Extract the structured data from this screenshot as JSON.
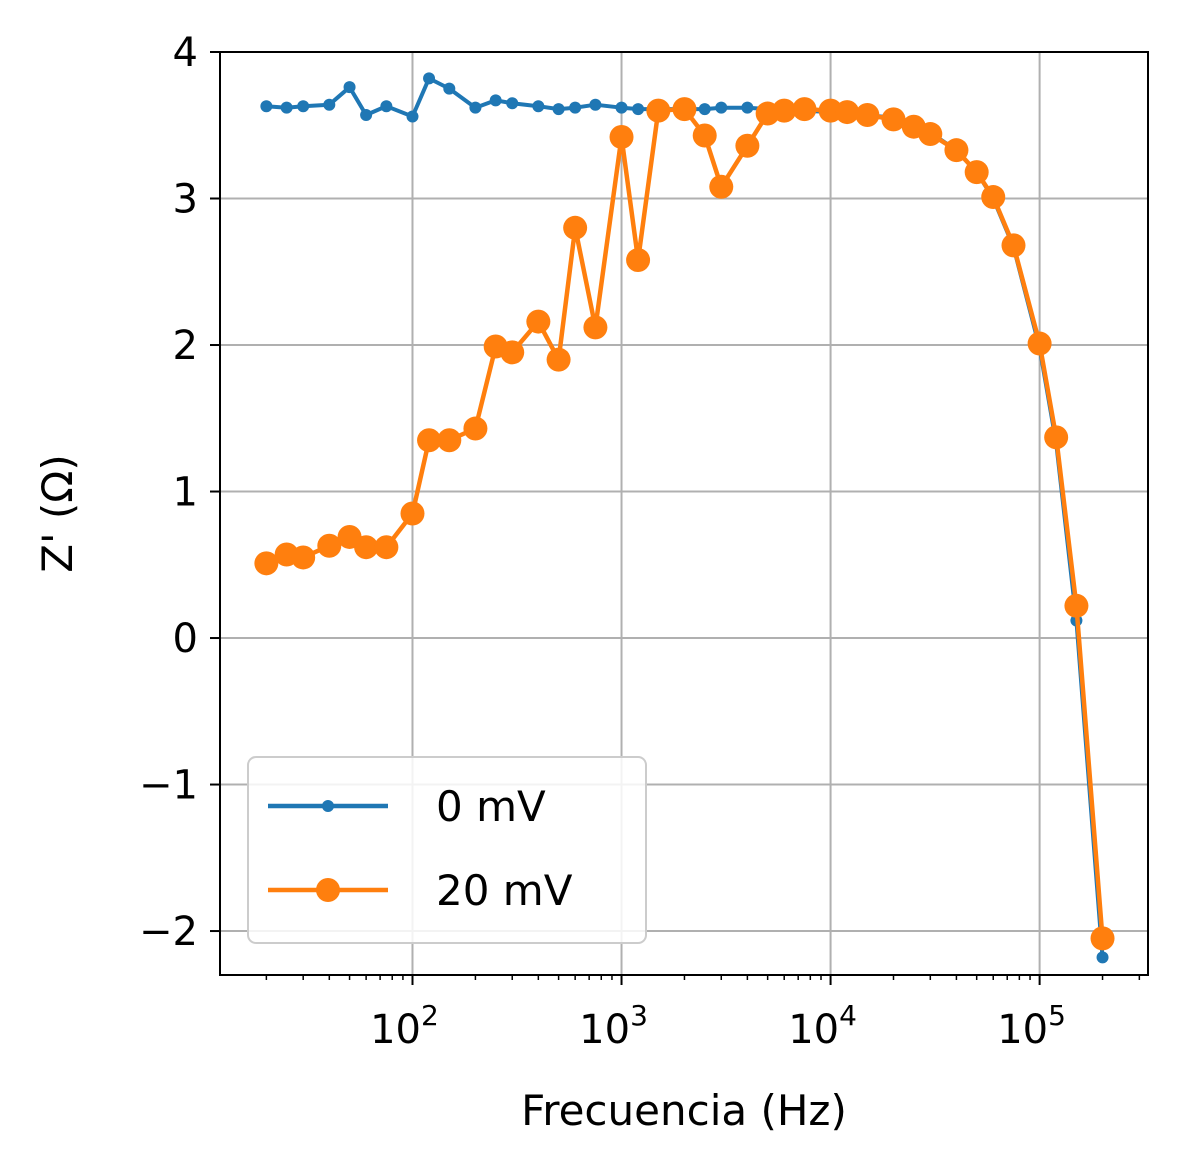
{
  "chart_data": {
    "type": "line",
    "xlabel": "Frecuencia (Hz)",
    "ylabel": "Z' (Ω)",
    "xscale": "log",
    "xlim": [
      12,
      330000
    ],
    "ylim": [
      -2.3,
      4.0
    ],
    "x_major_ticks": [
      100,
      1000,
      10000,
      100000
    ],
    "x_tick_labels": [
      "10",
      "10",
      "10",
      "10"
    ],
    "x_tick_exponents": [
      "2",
      "3",
      "4",
      "5"
    ],
    "y_ticks": [
      -2,
      -1,
      0,
      1,
      2,
      3,
      4
    ],
    "y_tick_labels": [
      "−2",
      "−1",
      "0",
      "1",
      "2",
      "3",
      "4"
    ],
    "grid": true,
    "legend_position": "lower-left",
    "series": [
      {
        "name": "0 mV",
        "color": "#1f77b4",
        "marker": "small-dot",
        "x": [
          20,
          25,
          30,
          40,
          50,
          60,
          75,
          100,
          120,
          150,
          200,
          250,
          300,
          400,
          500,
          600,
          750,
          1000,
          1200,
          1500,
          2000,
          2500,
          3000,
          4000,
          5000,
          6000,
          7500,
          10000,
          12000,
          15000,
          20000,
          25000,
          30000,
          40000,
          50000,
          60000,
          75000,
          100000,
          120000,
          150000,
          200000
        ],
        "y": [
          3.63,
          3.62,
          3.63,
          3.64,
          3.76,
          3.57,
          3.63,
          3.56,
          3.82,
          3.75,
          3.62,
          3.67,
          3.65,
          3.63,
          3.61,
          3.62,
          3.64,
          3.62,
          3.61,
          3.61,
          3.61,
          3.61,
          3.62,
          3.62,
          3.61,
          3.6,
          3.6,
          3.59,
          3.58,
          3.57,
          3.55,
          3.5,
          3.45,
          3.33,
          3.18,
          3.0,
          2.67,
          1.98,
          1.33,
          0.12,
          -2.18
        ]
      },
      {
        "name": "20 mV",
        "color": "#ff7f0e",
        "marker": "large-dot",
        "x": [
          20,
          25,
          30,
          40,
          50,
          60,
          75,
          100,
          120,
          150,
          200,
          250,
          300,
          400,
          500,
          600,
          750,
          1000,
          1200,
          1500,
          2000,
          2500,
          3000,
          4000,
          5000,
          6000,
          7500,
          10000,
          12000,
          15000,
          20000,
          25000,
          30000,
          40000,
          50000,
          60000,
          75000,
          100000,
          120000,
          150000,
          200000
        ],
        "y": [
          0.51,
          0.57,
          0.55,
          0.63,
          0.69,
          0.62,
          0.62,
          0.85,
          1.35,
          1.35,
          1.43,
          1.99,
          1.95,
          2.16,
          1.9,
          2.8,
          2.12,
          3.42,
          2.58,
          3.6,
          3.61,
          3.43,
          3.08,
          3.36,
          3.58,
          3.6,
          3.61,
          3.6,
          3.59,
          3.57,
          3.54,
          3.49,
          3.44,
          3.33,
          3.18,
          3.01,
          2.68,
          2.01,
          1.37,
          0.22,
          -2.05
        ]
      }
    ]
  }
}
